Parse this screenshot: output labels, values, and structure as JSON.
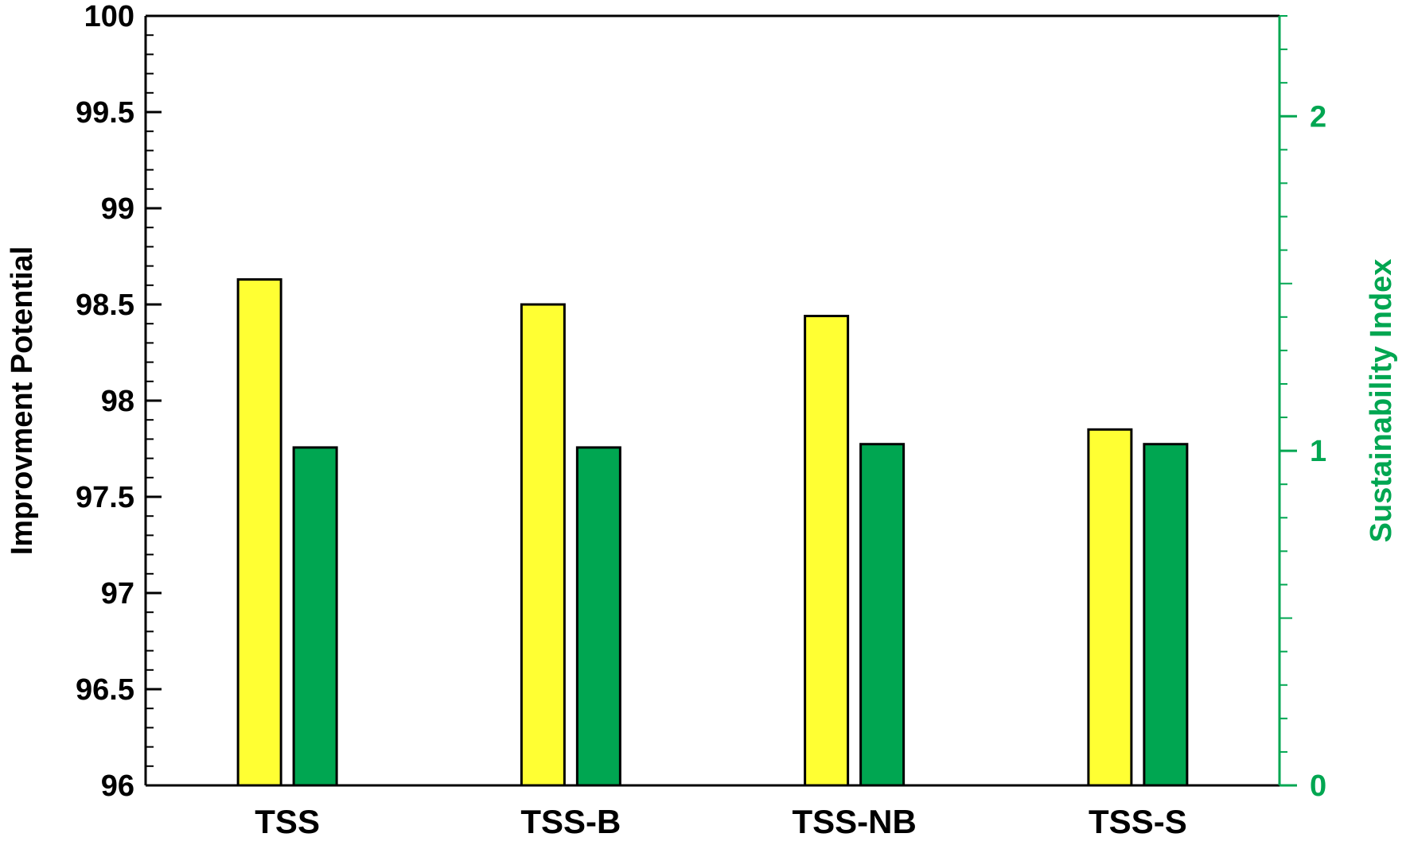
{
  "chart_data": {
    "type": "bar",
    "categories": [
      "TSS",
      "TSS-B",
      "TSS-NB",
      "TSS-S"
    ],
    "series": [
      {
        "name": "",
        "axis": "left",
        "color": "#ffff33",
        "values": [
          98.63,
          98.5,
          98.44,
          97.85
        ]
      },
      {
        "name": "",
        "axis": "right",
        "color": "#00a651",
        "values": [
          1.01,
          1.01,
          1.02,
          1.02
        ]
      }
    ],
    "y_left": {
      "label": "Improvment Potential",
      "range": [
        96,
        100
      ],
      "ticks": [
        "96",
        "96.5",
        "97",
        "97.5",
        "98",
        "98.5",
        "99",
        "99.5",
        "100"
      ],
      "color": "#000000"
    },
    "y_right": {
      "label": "Sustainability Index",
      "range": [
        0,
        2.3
      ],
      "ticks": [
        "0",
        "1",
        "2"
      ],
      "color": "#00a651"
    },
    "title": "",
    "xlabel": "",
    "grid": false,
    "legend": "none"
  }
}
